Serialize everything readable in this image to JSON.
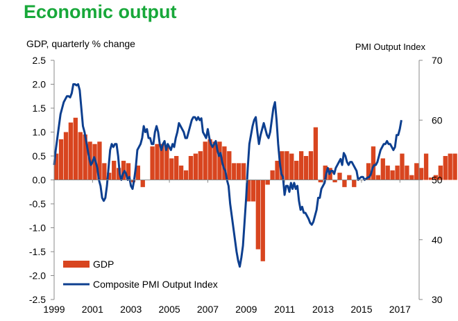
{
  "chart_data": {
    "type": "bar+line",
    "title": "Economic output",
    "left_axis_title": "GDP, quarterly % change",
    "right_axis_title": "PMI Output  Index",
    "left_ylim": [
      -2.5,
      2.5
    ],
    "left_ticks": [
      "2.5",
      "2.0",
      "1.5",
      "1.0",
      "0.5",
      "0.0",
      "-0.5",
      "-1.0",
      "-1.5",
      "-2.0",
      "-2.5"
    ],
    "right_ylim": [
      30,
      70
    ],
    "right_ticks": [
      "70",
      "60",
      "50",
      "40",
      "30"
    ],
    "xlim": [
      1999.0,
      2018.0
    ],
    "x_ticks": [
      "1999",
      "2001",
      "2003",
      "2005",
      "2007",
      "2009",
      "2011",
      "2013",
      "2015",
      "2017"
    ],
    "grid": false,
    "legend": {
      "placement": "bottom-left",
      "items": [
        {
          "label": "GDP",
          "color": "#d8451f",
          "kind": "bar"
        },
        {
          "label": "Composite PMI Output Index",
          "color": "#0d3f8f",
          "kind": "line"
        }
      ]
    },
    "series": [
      {
        "name": "GDP",
        "axis": "left",
        "color": "#d8451f",
        "start": 1999.0,
        "step": 0.25,
        "values": [
          0.55,
          0.85,
          1.0,
          1.2,
          1.3,
          1.0,
          0.95,
          0.8,
          0.75,
          0.8,
          0.35,
          0.15,
          0.4,
          0.25,
          0.4,
          0.35,
          -0.05,
          0.3,
          -0.15,
          0.0,
          0.7,
          0.75,
          0.75,
          0.7,
          0.45,
          0.5,
          0.3,
          0.2,
          0.5,
          0.55,
          0.6,
          0.8,
          0.85,
          0.8,
          0.8,
          0.7,
          0.6,
          0.35,
          0.35,
          0.35,
          -0.45,
          -0.45,
          -1.45,
          -1.7,
          -0.1,
          0.2,
          0.4,
          0.6,
          0.6,
          0.55,
          0.4,
          0.6,
          0.5,
          0.6,
          1.1,
          -0.05,
          0.3,
          0.25,
          -0.05,
          0.15,
          -0.15,
          0.1,
          -0.15,
          0.0,
          0.0,
          0.35,
          0.7,
          0.1,
          0.45,
          0.3,
          0.2,
          0.3,
          0.55,
          0.3,
          0.1,
          0.35,
          0.25,
          0.55,
          0.05,
          0.1,
          0.3,
          0.5,
          0.55,
          0.55
        ]
      },
      {
        "name": "Composite PMI Output Index",
        "axis": "right",
        "color": "#0d3f8f",
        "start": 1999.0,
        "step": 0.0833,
        "values": [
          52.5,
          55,
          57,
          59,
          61,
          62,
          63,
          63.5,
          64,
          64,
          63.8,
          64.5,
          66,
          66,
          65.8,
          66,
          65,
          62,
          59,
          58,
          56.5,
          55,
          53.5,
          52.5,
          53,
          53.8,
          53,
          52,
          50,
          49,
          47,
          46.5,
          47,
          49,
          52,
          55,
          56,
          55.5,
          56,
          56,
          54,
          51,
          50,
          51,
          51.5,
          51,
          50,
          50.5,
          49,
          48.5,
          50,
          52,
          55,
          55.5,
          56,
          57,
          59,
          58,
          58.5,
          57,
          57,
          56,
          56,
          58,
          59,
          58,
          56,
          55,
          56,
          56.5,
          55,
          56,
          55.5,
          55,
          56,
          55.5,
          57,
          58,
          59.5,
          59,
          58.5,
          58,
          57,
          57,
          58,
          59,
          60,
          60.5,
          60.5,
          60,
          60.5,
          60,
          60.3,
          58,
          57.5,
          57,
          58.5,
          57,
          56,
          55.5,
          56,
          56.5,
          55,
          54,
          54.5,
          53,
          52,
          51.5,
          50,
          49,
          46,
          44,
          42,
          40,
          38,
          36.5,
          35.5,
          37,
          39,
          43,
          47,
          52,
          56,
          57.5,
          59,
          60,
          60.5,
          58,
          56,
          57.5,
          58.5,
          59.5,
          58.5,
          57.5,
          57,
          58,
          60,
          62,
          63,
          60,
          56,
          53,
          51,
          50.5,
          47.5,
          49,
          49,
          48,
          49.5,
          48.5,
          49.5,
          48.5,
          49,
          46.5,
          45,
          45.5,
          44.5,
          44.5,
          44,
          43.5,
          42.8,
          42.5,
          43,
          44,
          45,
          47,
          47,
          48.5,
          49,
          49.5,
          51,
          52,
          51,
          51.5,
          51.5,
          51,
          52,
          52.5,
          53,
          53.5,
          52.5,
          54.5,
          54,
          53,
          52.5,
          53,
          53,
          52.5,
          52,
          51.5,
          50,
          50.3,
          50.5,
          50.5,
          50,
          50.2,
          50.4,
          50.5,
          51,
          52,
          52.5,
          52.5,
          53,
          54,
          55,
          55.5,
          56,
          56,
          56.5,
          56,
          56,
          55.5,
          55,
          55.5,
          57.5,
          57.5,
          58.5,
          60
        ]
      }
    ]
  }
}
